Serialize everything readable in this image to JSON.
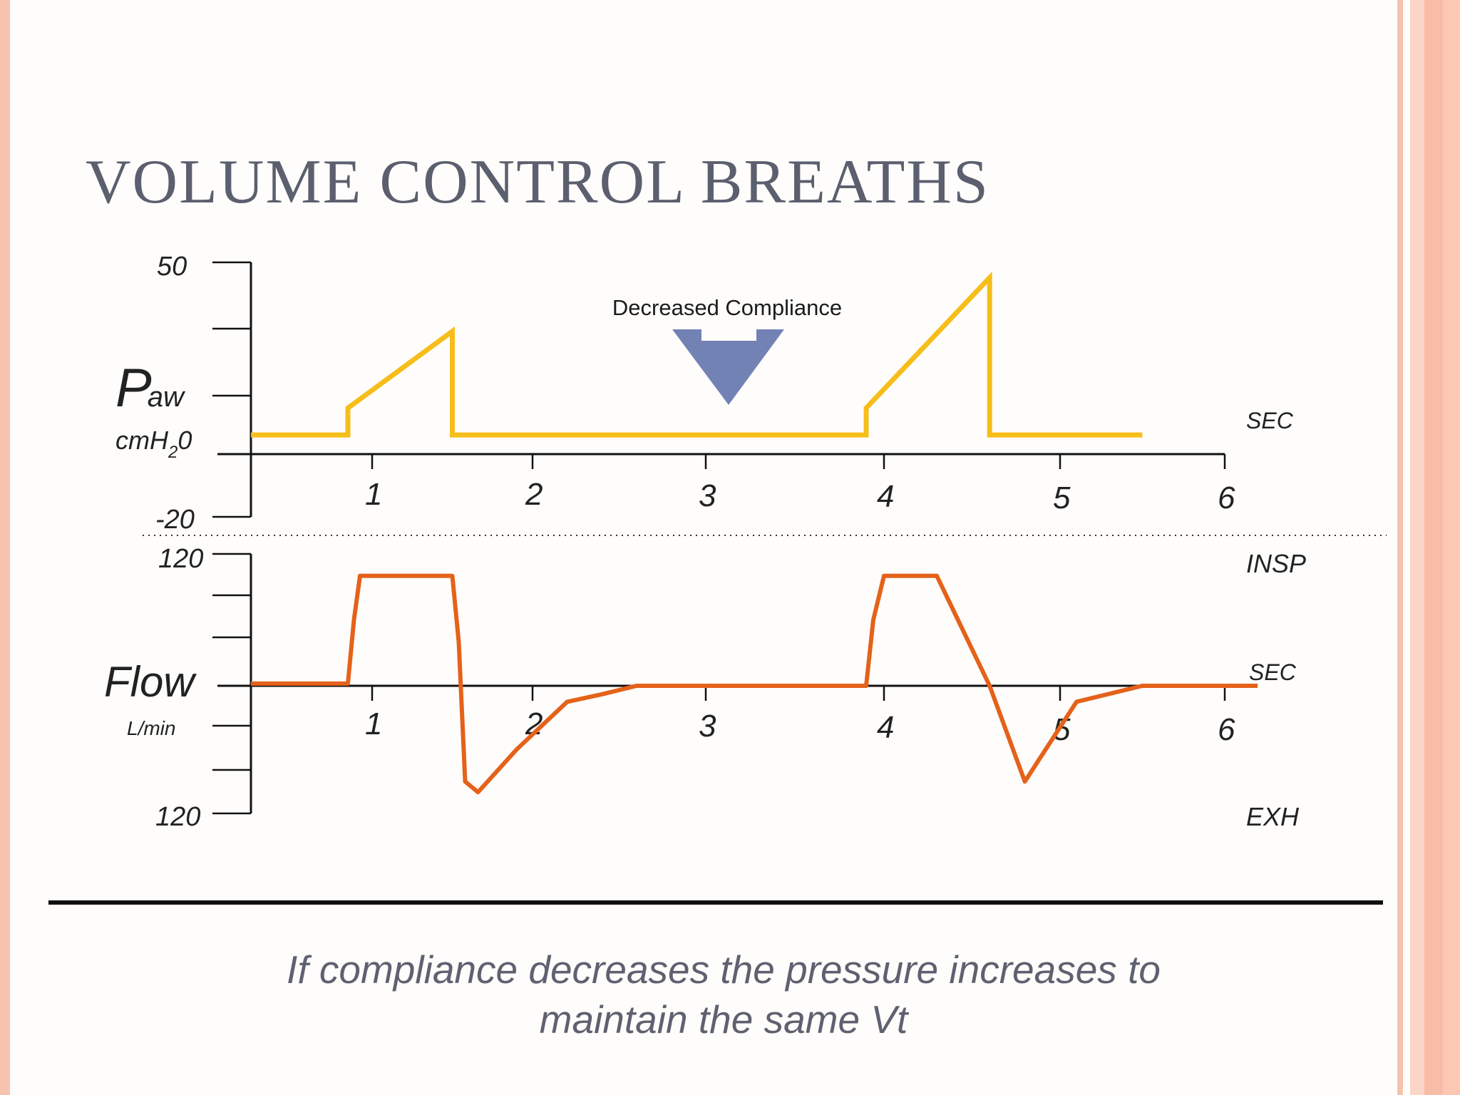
{
  "colors": {
    "background": "#fffdfb",
    "title": "#5b5f6e",
    "pressure": "#f6be1a",
    "flow": "#e4621a",
    "arrow": "#7282b4",
    "border": "#f7c2ad"
  },
  "slide": {
    "title": "VOLUME CONTROL BREATHS",
    "caption_line1": "If compliance decreases the pressure increases to",
    "caption_line2": "maintain the same Vt"
  },
  "chart_data": [
    {
      "type": "line",
      "ylabel_main": "P",
      "ylabel_sub": "aw",
      "unit_main": "cmH",
      "unit_sub": "2",
      "unit_end": "0",
      "x_unit": "SEC",
      "xticks": [
        "1",
        "2",
        "3",
        "4",
        "5",
        "6"
      ],
      "ytick_top": "50",
      "ytick_bottom": "-20",
      "ylim": [
        -20,
        50
      ],
      "annotation": "Decreased Compliance",
      "series": [
        {
          "x": [
            0.0,
            0.8,
            0.8,
            1.5,
            1.5,
            2.2,
            3.0,
            3.9,
            3.9,
            4.6,
            4.6,
            5.5
          ],
          "y": [
            5,
            5,
            12,
            32,
            5,
            5,
            5,
            5,
            12,
            46,
            5,
            5
          ]
        }
      ]
    },
    {
      "type": "line",
      "ylabel": "Flow",
      "unit": "L/min",
      "x_unit": "SEC",
      "upper_label": "INSP",
      "lower_label": "EXH",
      "xticks": [
        "1",
        "2",
        "3",
        "4",
        "5",
        "6"
      ],
      "ytick_top": "120",
      "ytick_bottom": "120",
      "ylim": [
        -120,
        120
      ],
      "series": [
        {
          "x": [
            0.0,
            0.8,
            0.85,
            0.9,
            1.5,
            1.54,
            1.58,
            1.66,
            1.9,
            2.2,
            2.4,
            2.6,
            3.0,
            3.9,
            3.94,
            4.0,
            4.08,
            4.3,
            4.6,
            4.8,
            5.1,
            5.5,
            6.2
          ],
          "y": [
            2,
            2,
            60,
            100,
            100,
            40,
            -90,
            -100,
            -60,
            -15,
            -8,
            0,
            0,
            0,
            60,
            100,
            100,
            100,
            0,
            -90,
            -15,
            0,
            0
          ]
        }
      ]
    }
  ]
}
